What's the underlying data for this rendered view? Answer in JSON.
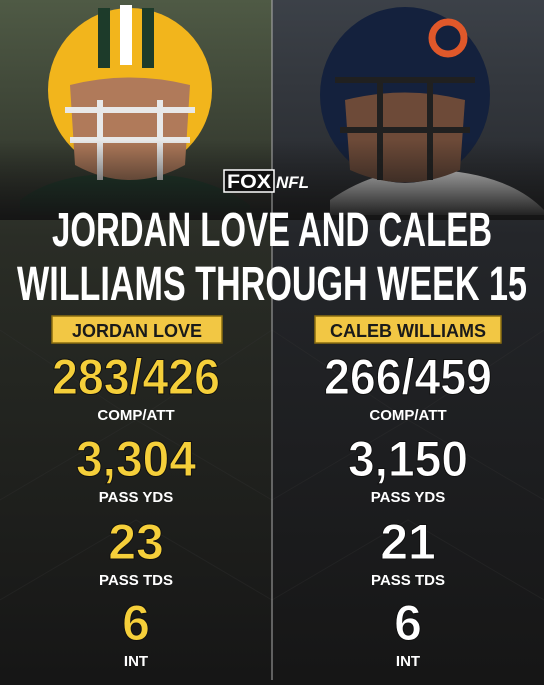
{
  "logo": {
    "fox": "FOX",
    "nfl": "NFL"
  },
  "title": [
    "JORDAN LOVE AND CALEB",
    "WILLIAMS THROUGH WEEK 15"
  ],
  "players": [
    {
      "name": "JORDAN LOVE",
      "stats": [
        {
          "value": "283/426",
          "label": "COMP/ATT"
        },
        {
          "value": "3,304",
          "label": "PASS YDS"
        },
        {
          "value": "23",
          "label": "PASS TDS"
        },
        {
          "value": "6",
          "label": "INT"
        }
      ]
    },
    {
      "name": "CALEB WILLIAMS",
      "stats": [
        {
          "value": "266/459",
          "label": "COMP/ATT"
        },
        {
          "value": "3,150",
          "label": "PASS YDS"
        },
        {
          "value": "21",
          "label": "PASS TDS"
        },
        {
          "value": "6",
          "label": "INT"
        }
      ]
    }
  ]
}
